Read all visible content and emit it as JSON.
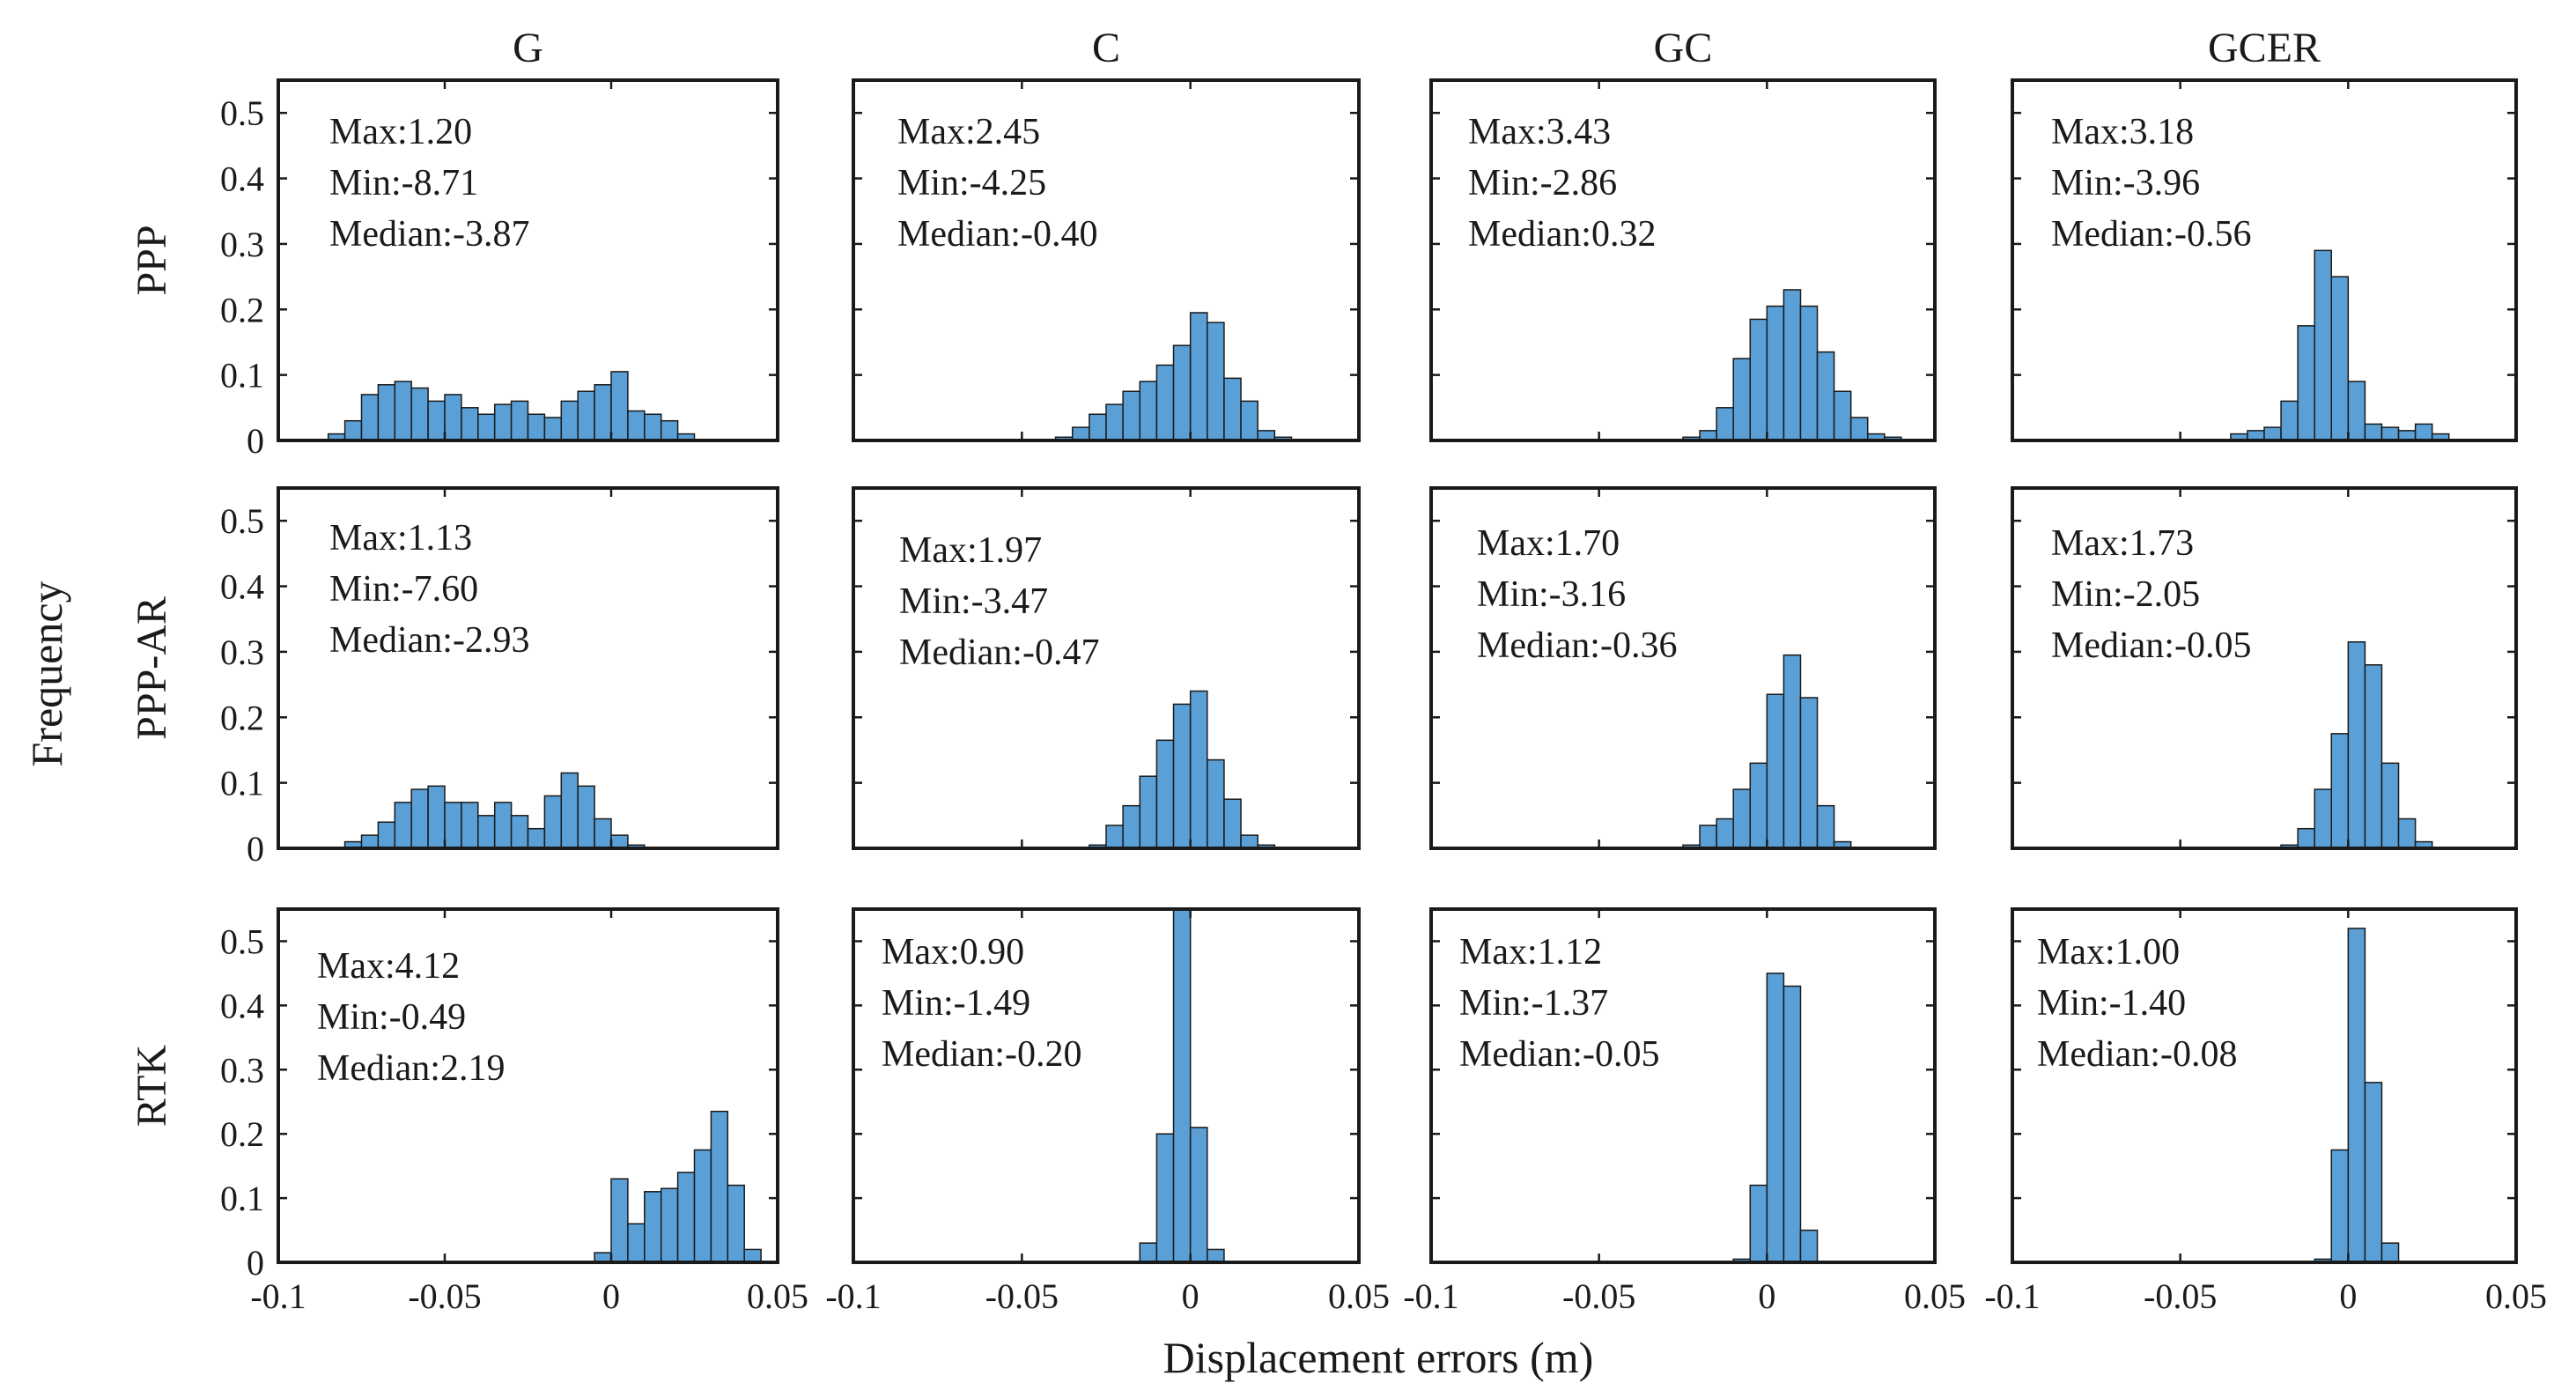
{
  "figure": {
    "column_titles": [
      "G",
      "C",
      "GC",
      "GCER"
    ],
    "row_labels": [
      "PPP",
      "PPP-AR",
      "RTK"
    ],
    "xlabel": "Displacement errors (m)",
    "ylabel": "Frequency",
    "bar_color": "#5AA0D6",
    "stat_labels": {
      "max": "Max:",
      "min": "Min:",
      "median": "Median:"
    }
  },
  "chart_data": {
    "type": "histogram-grid",
    "xlim": [
      -0.1,
      0.05
    ],
    "ylim": [
      0,
      0.55
    ],
    "bin_width": 0.005,
    "x_ticks": [
      -0.1,
      -0.05,
      0,
      0.05
    ],
    "x_tick_labels": [
      "-0.1",
      "-0.05",
      "0",
      "0.05"
    ],
    "y_ticks": [
      0,
      0.1,
      0.2,
      0.3,
      0.4,
      0.5
    ],
    "y_tick_labels": [
      "0",
      "0.1",
      "0.2",
      "0.3",
      "0.4",
      "0.5"
    ],
    "panels": [
      {
        "row": "PPP",
        "column": "G",
        "max": "1.20",
        "min": "-8.71",
        "median": "-3.87",
        "bin_start": -0.085,
        "values": [
          0.01,
          0.03,
          0.07,
          0.085,
          0.09,
          0.08,
          0.06,
          0.07,
          0.05,
          0.04,
          0.055,
          0.06,
          0.04,
          0.035,
          0.06,
          0.075,
          0.085,
          0.105,
          0.045,
          0.04,
          0.03,
          0.01
        ]
      },
      {
        "row": "PPP",
        "column": "C",
        "max": "2.45",
        "min": "-4.25",
        "median": "-0.40",
        "bin_start": -0.04,
        "values": [
          0.005,
          0.02,
          0.04,
          0.055,
          0.075,
          0.09,
          0.115,
          0.145,
          0.195,
          0.18,
          0.095,
          0.06,
          0.015,
          0.005
        ]
      },
      {
        "row": "PPP",
        "column": "GC",
        "max": "3.43",
        "min": "-2.86",
        "median": "0.32",
        "bin_start": -0.025,
        "values": [
          0.005,
          0.015,
          0.05,
          0.125,
          0.185,
          0.205,
          0.23,
          0.205,
          0.135,
          0.075,
          0.035,
          0.01,
          0.005
        ]
      },
      {
        "row": "PPP",
        "column": "GCER",
        "max": "3.18",
        "min": "-3.96",
        "median": "-0.56",
        "bin_start": -0.035,
        "values": [
          0.01,
          0.015,
          0.02,
          0.06,
          0.175,
          0.29,
          0.25,
          0.09,
          0.025,
          0.02,
          0.015,
          0.025,
          0.01
        ]
      },
      {
        "row": "PPP-AR",
        "column": "G",
        "max": "1.13",
        "min": "-7.60",
        "median": "-2.93",
        "bin_start": -0.08,
        "values": [
          0.01,
          0.02,
          0.04,
          0.07,
          0.09,
          0.095,
          0.07,
          0.07,
          0.05,
          0.07,
          0.05,
          0.03,
          0.08,
          0.115,
          0.095,
          0.045,
          0.02,
          0.005
        ]
      },
      {
        "row": "PPP-AR",
        "column": "C",
        "max": "1.97",
        "min": "-3.47",
        "median": "-0.47",
        "bin_start": -0.03,
        "values": [
          0.005,
          0.035,
          0.065,
          0.11,
          0.165,
          0.22,
          0.24,
          0.135,
          0.075,
          0.02,
          0.005
        ]
      },
      {
        "row": "PPP-AR",
        "column": "GC",
        "max": "1.70",
        "min": "-3.16",
        "median": "-0.36",
        "bin_start": -0.025,
        "values": [
          0.005,
          0.035,
          0.045,
          0.09,
          0.13,
          0.235,
          0.295,
          0.23,
          0.065,
          0.01
        ]
      },
      {
        "row": "PPP-AR",
        "column": "GCER",
        "max": "1.73",
        "min": "-2.05",
        "median": "-0.05",
        "bin_start": -0.02,
        "values": [
          0.005,
          0.03,
          0.09,
          0.175,
          0.315,
          0.28,
          0.13,
          0.045,
          0.01
        ]
      },
      {
        "row": "RTK",
        "column": "G",
        "max": "4.12",
        "min": "-0.49",
        "median": "2.19",
        "bin_start": -0.005,
        "values": [
          0.015,
          0.13,
          0.06,
          0.11,
          0.115,
          0.14,
          0.175,
          0.235,
          0.12,
          0.02
        ]
      },
      {
        "row": "RTK",
        "column": "C",
        "max": "0.90",
        "min": "-1.49",
        "median": "-0.20",
        "bin_start": -0.015,
        "values": [
          0.03,
          0.2,
          0.55,
          0.21,
          0.02
        ]
      },
      {
        "row": "RTK",
        "column": "GC",
        "max": "1.12",
        "min": "-1.37",
        "median": "-0.05",
        "bin_start": -0.01,
        "values": [
          0.005,
          0.12,
          0.45,
          0.43,
          0.05
        ]
      },
      {
        "row": "RTK",
        "column": "GCER",
        "max": "1.00",
        "min": "-1.40",
        "median": "-0.08",
        "bin_start": -0.01,
        "values": [
          0.005,
          0.175,
          0.52,
          0.28,
          0.03
        ]
      }
    ]
  }
}
